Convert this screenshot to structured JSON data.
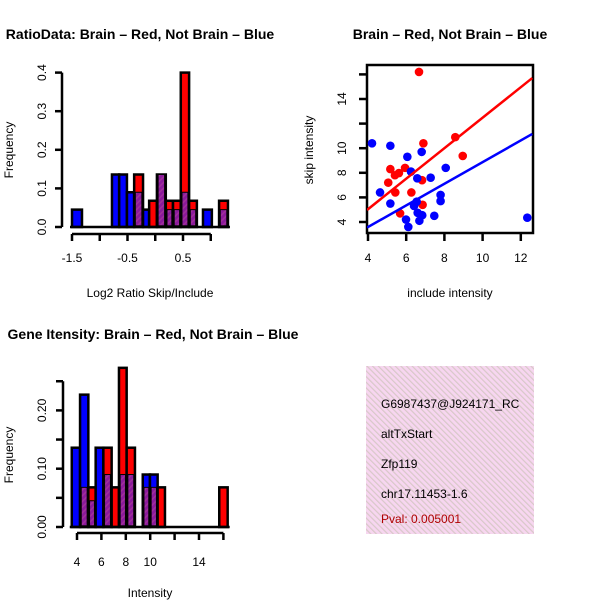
{
  "colors": {
    "red": "#ff0000",
    "blue": "#0000ff",
    "overlap": "#8b1a9c",
    "pval": "#b00000",
    "box_bg": "#f7d6f0"
  },
  "chart_data": [
    {
      "type": "bar",
      "title": "RatioData: Brain – Red, Not Brain – Blue",
      "xlabel": "Log2 Ratio Skip/Include",
      "ylabel": "Frequency",
      "xlim": [
        -1.5,
        1.0
      ],
      "ylim": [
        0,
        0.4
      ],
      "x_ticks": [
        -1.5,
        -1.0,
        -0.5,
        0.0,
        0.5,
        1.0
      ],
      "x_tick_labels": [
        "-1.5",
        "",
        "-0.5",
        "",
        "0.5",
        ""
      ],
      "y_ticks": [
        0.0,
        0.1,
        0.2,
        0.3,
        0.4
      ],
      "y_tick_labels": [
        "0.0",
        "0.1",
        "0.2",
        "0.3",
        "0.4"
      ],
      "bins": [
        {
          "x0": -1.5,
          "x1": -1.32,
          "red": 0,
          "blue": 0.045
        },
        {
          "x0": -0.78,
          "x1": -0.65,
          "red": 0,
          "blue": 0.136
        },
        {
          "x0": -0.65,
          "x1": -0.51,
          "red": 0,
          "blue": 0.136
        },
        {
          "x0": -0.51,
          "x1": -0.38,
          "red": 0,
          "blue": 0.09
        },
        {
          "x0": -0.38,
          "x1": -0.22,
          "red": 0.136,
          "blue": 0.09
        },
        {
          "x0": -0.22,
          "x1": -0.11,
          "red": 0,
          "blue": 0.045
        },
        {
          "x0": -0.11,
          "x1": 0.03,
          "red": 0.068,
          "blue": 0
        },
        {
          "x0": 0.03,
          "x1": 0.19,
          "red": 0.136,
          "blue": 0.136
        },
        {
          "x0": 0.19,
          "x1": 0.32,
          "red": 0.068,
          "blue": 0.045
        },
        {
          "x0": 0.32,
          "x1": 0.46,
          "red": 0.068,
          "blue": 0.045
        },
        {
          "x0": 0.46,
          "x1": 0.61,
          "red": 0.4,
          "blue": 0.09
        },
        {
          "x0": 0.61,
          "x1": 0.75,
          "red": 0.068,
          "blue": 0.045
        },
        {
          "x0": 0.86,
          "x1": 1.02,
          "red": 0,
          "blue": 0.045
        },
        {
          "x0": 1.15,
          "x1": 1.31,
          "red": 0.068,
          "blue": 0.045
        }
      ]
    },
    {
      "type": "scatter",
      "title": "Brain – Red, Not Brain – Blue",
      "xlabel": "include intensity",
      "ylabel": "skip intensity",
      "xlim": [
        3.95,
        12.6
      ],
      "ylim": [
        3.1,
        16.8
      ],
      "x_ticks": [
        4,
        6,
        8,
        10,
        12
      ],
      "x_tick_labels": [
        "4",
        "6",
        "8",
        "10",
        "12"
      ],
      "y_ticks": [
        4,
        6,
        8,
        10,
        12,
        14,
        16
      ],
      "y_tick_labels": [
        "4",
        "6",
        "8",
        "10",
        "",
        "14",
        ""
      ],
      "series": [
        {
          "name": "Brain",
          "color": "red",
          "points": [
            [
              6.67,
              16.2
            ],
            [
              8.57,
              10.9
            ],
            [
              8.96,
              9.37
            ],
            [
              6.9,
              10.4
            ],
            [
              5.17,
              8.3
            ],
            [
              5.94,
              8.4
            ],
            [
              5.62,
              7.98
            ],
            [
              5.41,
              7.8
            ],
            [
              5.06,
              7.2
            ],
            [
              6.83,
              7.4
            ],
            [
              5.43,
              6.4
            ],
            [
              6.27,
              6.4
            ],
            [
              6.86,
              5.4
            ],
            [
              5.68,
              4.7
            ]
          ],
          "fit": {
            "intercept": 0.08,
            "slope": 1.24
          }
        },
        {
          "name": "Not Brain",
          "color": "blue",
          "points": [
            [
              4.21,
              10.4
            ],
            [
              5.17,
              10.2
            ],
            [
              6.06,
              9.3
            ],
            [
              6.81,
              9.7
            ],
            [
              8.07,
              8.4
            ],
            [
              6.25,
              8.1
            ],
            [
              6.58,
              7.55
            ],
            [
              7.28,
              7.6
            ],
            [
              4.63,
              6.4
            ],
            [
              7.8,
              6.2
            ],
            [
              7.8,
              5.7
            ],
            [
              5.17,
              5.5
            ],
            [
              6.55,
              5.65
            ],
            [
              6.41,
              5.3
            ],
            [
              6.6,
              4.75
            ],
            [
              6.84,
              4.55
            ],
            [
              7.47,
              4.5
            ],
            [
              5.99,
              4.2
            ],
            [
              6.69,
              4.1
            ],
            [
              6.11,
              3.6
            ],
            [
              12.34,
              4.35
            ]
          ],
          "fit": {
            "intercept": 0.07,
            "slope": 0.88
          }
        }
      ]
    },
    {
      "type": "bar",
      "title": "Gene Itensity: Brain – Red, Not Brain – Blue",
      "xlabel": "Intensity",
      "ylabel": "Frequency",
      "xlim": [
        4,
        16
      ],
      "ylim": [
        0,
        0.25
      ],
      "x_ticks": [
        4,
        6,
        8,
        10,
        12,
        14,
        16
      ],
      "x_tick_labels": [
        "4",
        "6",
        "8",
        "10",
        "",
        "14",
        ""
      ],
      "y_ticks": [
        0.0,
        0.05,
        0.1,
        0.15,
        0.2,
        0.25
      ],
      "y_tick_labels": [
        "0.00",
        "",
        "0.10",
        "",
        "0.20",
        ""
      ],
      "bins": [
        {
          "x0": 3.57,
          "x1": 4.25,
          "red": 0,
          "blue": 0.136
        },
        {
          "x0": 4.25,
          "x1": 4.93,
          "red": 0.068,
          "blue": 0.227
        },
        {
          "x0": 4.93,
          "x1": 5.53,
          "red": 0.068,
          "blue": 0.045
        },
        {
          "x0": 5.53,
          "x1": 6.16,
          "red": 0,
          "blue": 0.136
        },
        {
          "x0": 6.16,
          "x1": 6.84,
          "red": 0.136,
          "blue": 0.09
        },
        {
          "x0": 6.84,
          "x1": 7.44,
          "red": 0.068,
          "blue": 0
        },
        {
          "x0": 7.44,
          "x1": 8.07,
          "red": 0.273,
          "blue": 0.09
        },
        {
          "x0": 8.07,
          "x1": 8.75,
          "red": 0.136,
          "blue": 0.09
        },
        {
          "x0": 9.39,
          "x1": 9.98,
          "red": 0.068,
          "blue": 0.09
        },
        {
          "x0": 9.98,
          "x1": 10.61,
          "red": 0.068,
          "blue": 0.09
        },
        {
          "x0": 10.61,
          "x1": 11.21,
          "red": 0.068,
          "blue": 0
        },
        {
          "x0": 15.66,
          "x1": 16.35,
          "red": 0.068,
          "blue": 0
        }
      ]
    }
  ],
  "info": {
    "id": "G6987437@J924171_RC",
    "event_type": "altTxStart",
    "gene": "Zfp119",
    "location": "chr17.11453-1.6",
    "pval": "Pval: 0.005001"
  }
}
